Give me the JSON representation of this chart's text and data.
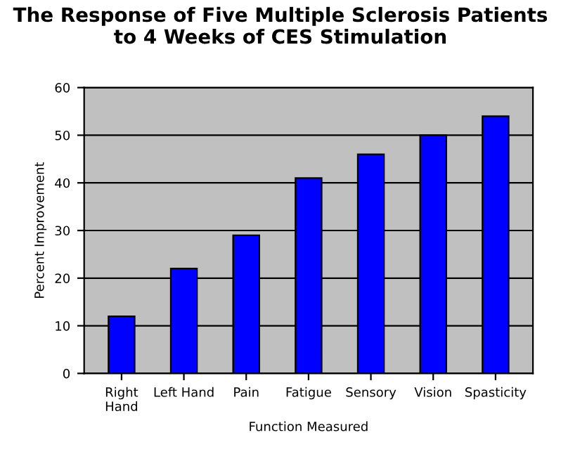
{
  "chart_data": {
    "type": "bar",
    "title": "The Response of Five Multiple Sclerosis Patients\nto 4 Weeks of CES Stimulation",
    "categories": [
      "Right\nHand",
      "Left Hand",
      "Pain",
      "Fatigue",
      "Sensory",
      "Vision",
      "Spasticity"
    ],
    "values": [
      12,
      22,
      29,
      41,
      46,
      50,
      54
    ],
    "color": "#0000ff",
    "xlabel": "Function Measured",
    "ylabel": "Percent Improvement",
    "ylim": [
      0,
      60
    ],
    "yticks": [
      0,
      10,
      20,
      30,
      40,
      50,
      60
    ],
    "grid": "y"
  }
}
